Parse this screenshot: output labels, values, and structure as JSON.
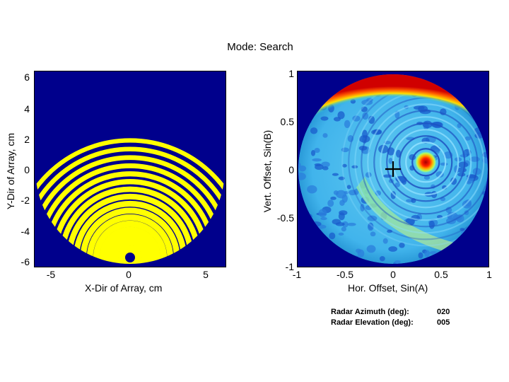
{
  "header": {
    "mode_label": "Mode:  Search"
  },
  "left_plot": {
    "xlabel": "X-Dir of Array, cm",
    "ylabel": "Y-Dir of Array, cm",
    "xticks": [
      "-5",
      "0",
      "5"
    ],
    "yticks": [
      "6",
      "4",
      "2",
      "0",
      "-2",
      "-4",
      "-6"
    ],
    "xlim": [
      -6.2,
      6.2
    ],
    "ylim": [
      -6.2,
      6.2
    ],
    "colors": {
      "background": "#00008c",
      "stripes": "#ffff00",
      "frame": "#000000"
    }
  },
  "right_plot": {
    "xlabel": "Hor. Offset, Sin(A)",
    "ylabel": "Vert. Offset, Sin(B)",
    "xticks": [
      "-1",
      "-0.5",
      "0",
      "0.5",
      "1"
    ],
    "yticks": [
      "1",
      "0.5",
      "0",
      "-0.5",
      "-1"
    ],
    "xlim": [
      -1,
      1
    ],
    "ylim": [
      -1,
      1
    ],
    "beam_center": [
      0.34,
      0.07
    ],
    "crosshair": [
      0.0,
      0.0
    ],
    "colors": {
      "background": "#00008c",
      "field": "#3fb0e8",
      "hot": "#ff2a00"
    }
  },
  "readout": {
    "azimuth_label": "Radar Azimuth (deg):",
    "azimuth_value": "020",
    "elevation_label": "Radar Elevation (deg):",
    "elevation_value": "005"
  }
}
